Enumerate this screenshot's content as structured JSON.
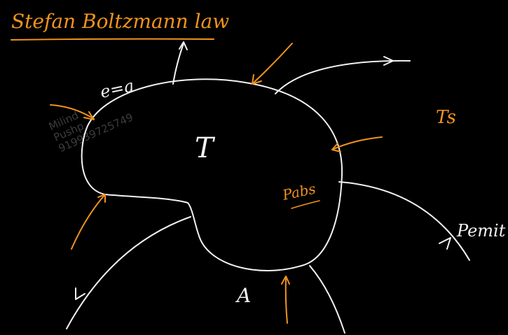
{
  "title": "Stefan Boltzmann law",
  "body_label": "T",
  "emissivity_label": "e=a",
  "surroundings_label": "Ts",
  "absorbed_label": "Pabs",
  "emitted_label": "Pemit",
  "area_label": "A",
  "watermark": {
    "line1": "Milind",
    "line2": "Pushp",
    "line3": "919939725749"
  },
  "colors": {
    "background": "#000000",
    "chalk": "#f2f2f2",
    "accent": "#f2931e",
    "watermark": "#3c3c3c"
  }
}
